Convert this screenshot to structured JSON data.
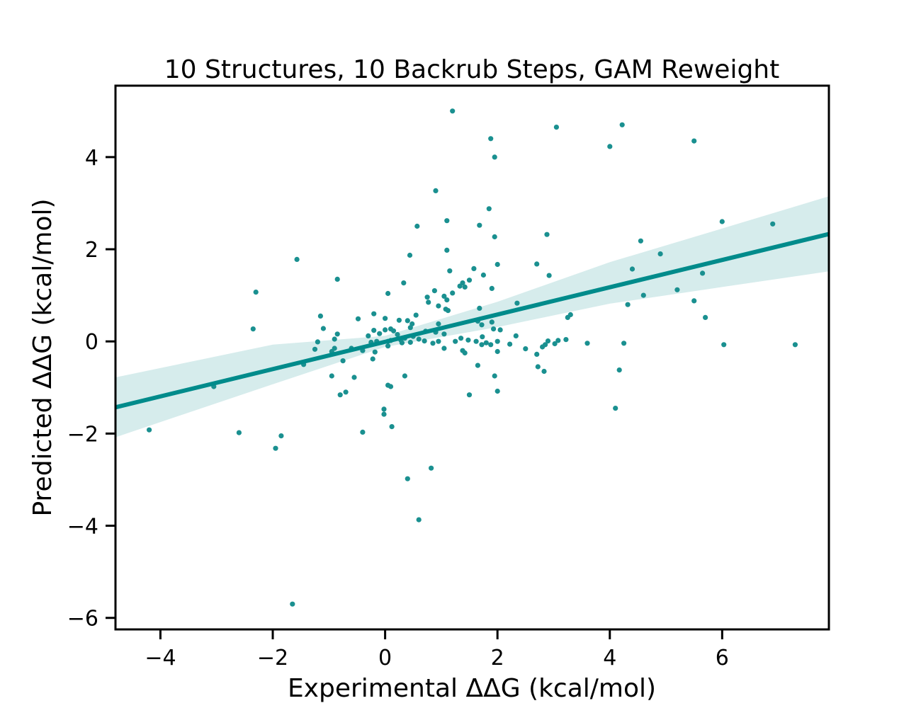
{
  "chart_data": {
    "type": "scatter",
    "title": "10 Structures, 10 Backrub Steps, GAM Reweight",
    "xlabel": "Experimental ΔΔG (kcal/mol)",
    "ylabel": "Predicted ΔΔG (kcal/mol)",
    "xlim": [
      -4.8,
      7.9
    ],
    "ylim": [
      -6.25,
      5.55
    ],
    "xticks": [
      -4,
      -2,
      0,
      2,
      4,
      6
    ],
    "yticks": [
      -6,
      -4,
      -2,
      0,
      2,
      4
    ],
    "xtick_labels": [
      "−4",
      "−2",
      "0",
      "2",
      "4",
      "6"
    ],
    "ytick_labels": [
      "−6",
      "−4",
      "−2",
      "0",
      "2",
      "4"
    ],
    "grid": false,
    "colors": {
      "points": "#1a9090",
      "line": "#008b8b",
      "band": "#d6ecec"
    },
    "regression": {
      "line": [
        [
          -4.8,
          -1.43
        ],
        [
          7.9,
          2.33
        ]
      ],
      "band_upper": [
        [
          -4.8,
          -0.78
        ],
        [
          -2,
          -0.07
        ],
        [
          0,
          0.12
        ],
        [
          2,
          0.86
        ],
        [
          4,
          1.72
        ],
        [
          6,
          2.45
        ],
        [
          7.9,
          3.15
        ]
      ],
      "band_lower": [
        [
          -4.8,
          -2.08
        ],
        [
          -2,
          -0.93
        ],
        [
          0,
          -0.12
        ],
        [
          2,
          0.31
        ],
        [
          4,
          0.82
        ],
        [
          6,
          1.18
        ],
        [
          7.9,
          1.52
        ]
      ]
    },
    "series": [
      {
        "points": [
          [
            1.2,
            5.0
          ],
          [
            3.05,
            4.65
          ],
          [
            4.22,
            4.7
          ],
          [
            1.88,
            4.4
          ],
          [
            4.0,
            4.23
          ],
          [
            5.5,
            4.35
          ],
          [
            1.95,
            4.0
          ],
          [
            0.9,
            3.27
          ],
          [
            1.85,
            2.88
          ],
          [
            1.1,
            2.62
          ],
          [
            0.57,
            2.5
          ],
          [
            1.68,
            2.52
          ],
          [
            2.88,
            2.32
          ],
          [
            1.95,
            2.27
          ],
          [
            6.0,
            2.6
          ],
          [
            6.9,
            2.55
          ],
          [
            4.55,
            2.18
          ],
          [
            1.1,
            1.98
          ],
          [
            0.44,
            1.87
          ],
          [
            4.9,
            1.9
          ],
          [
            -1.57,
            1.78
          ],
          [
            2.0,
            1.67
          ],
          [
            2.7,
            1.68
          ],
          [
            1.58,
            1.58
          ],
          [
            4.4,
            1.57
          ],
          [
            1.15,
            1.53
          ],
          [
            5.65,
            1.48
          ],
          [
            1.75,
            1.44
          ],
          [
            2.92,
            1.43
          ],
          [
            -0.85,
            1.35
          ],
          [
            1.5,
            1.33
          ],
          [
            1.38,
            1.27
          ],
          [
            0.33,
            1.27
          ],
          [
            1.33,
            1.2
          ],
          [
            1.42,
            1.18
          ],
          [
            1.9,
            1.15
          ],
          [
            5.2,
            1.12
          ],
          [
            0.88,
            1.1
          ],
          [
            1.2,
            1.05
          ],
          [
            -2.3,
            1.07
          ],
          [
            0.05,
            1.04
          ],
          [
            4.6,
            1.0
          ],
          [
            1.05,
            0.98
          ],
          [
            0.75,
            0.96
          ],
          [
            1.1,
            0.9
          ],
          [
            5.5,
            0.88
          ],
          [
            0.77,
            0.85
          ],
          [
            2.35,
            0.83
          ],
          [
            4.32,
            0.8
          ],
          [
            0.95,
            0.77
          ],
          [
            1.08,
            0.7
          ],
          [
            1.68,
            0.72
          ],
          [
            1.12,
            0.67
          ],
          [
            3.3,
            0.58
          ],
          [
            0.55,
            0.57
          ],
          [
            -1.15,
            0.55
          ],
          [
            5.7,
            0.52
          ],
          [
            3.25,
            0.52
          ],
          [
            -0.2,
            0.6
          ],
          [
            0.0,
            0.5
          ],
          [
            -0.48,
            0.49
          ],
          [
            0.25,
            0.46
          ],
          [
            0.4,
            0.45
          ],
          [
            1.65,
            0.44
          ],
          [
            1.9,
            0.42
          ],
          [
            0.48,
            0.38
          ],
          [
            0.95,
            0.38
          ],
          [
            1.72,
            0.36
          ],
          [
            0.45,
            0.3
          ],
          [
            -1.1,
            0.28
          ],
          [
            -2.35,
            0.27
          ],
          [
            1.93,
            0.27
          ],
          [
            0.1,
            0.27
          ],
          [
            -0.2,
            0.24
          ],
          [
            0.0,
            0.25
          ],
          [
            0.15,
            0.23
          ],
          [
            2.05,
            0.25
          ],
          [
            0.9,
            0.2
          ],
          [
            0.72,
            0.22
          ],
          [
            1.05,
            0.16
          ],
          [
            -0.85,
            0.16
          ],
          [
            -0.1,
            0.17
          ],
          [
            0.22,
            0.15
          ],
          [
            -0.3,
            0.12
          ],
          [
            0.5,
            0.11
          ],
          [
            2.33,
            0.12
          ],
          [
            1.73,
            0.1
          ],
          [
            1.35,
            0.07
          ],
          [
            0.35,
            0.07
          ],
          [
            -0.9,
            0.05
          ],
          [
            0.6,
            0.05
          ],
          [
            0.28,
            0.03
          ],
          [
            3.08,
            0.02
          ],
          [
            3.22,
            0.04
          ],
          [
            2.9,
            0.01
          ],
          [
            1.48,
            0.03
          ],
          [
            0.1,
            0.02
          ],
          [
            0.7,
            0.01
          ],
          [
            -0.15,
            0.0
          ],
          [
            0.05,
            0.0
          ],
          [
            0.95,
            0.0
          ],
          [
            1.25,
            0.0
          ],
          [
            1.62,
            0.0
          ],
          [
            2.0,
            0.0
          ],
          [
            0.45,
            -0.02
          ],
          [
            -1.2,
            -0.01
          ],
          [
            1.8,
            -0.03
          ],
          [
            0.3,
            -0.03
          ],
          [
            -0.25,
            -0.02
          ],
          [
            0.85,
            -0.04
          ],
          [
            3.6,
            -0.04
          ],
          [
            4.25,
            -0.04
          ],
          [
            3.02,
            -0.05
          ],
          [
            1.72,
            -0.07
          ],
          [
            1.88,
            -0.07
          ],
          [
            2.22,
            -0.06
          ],
          [
            2.85,
            -0.07
          ],
          [
            6.03,
            -0.07
          ],
          [
            7.3,
            -0.07
          ],
          [
            2.8,
            -0.12
          ],
          [
            0.05,
            -0.1
          ],
          [
            -0.6,
            -0.15
          ],
          [
            1.05,
            -0.15
          ],
          [
            -0.9,
            -0.15
          ],
          [
            -1.25,
            -0.17
          ],
          [
            1.38,
            -0.2
          ],
          [
            -0.4,
            -0.2
          ],
          [
            2.0,
            -0.22
          ],
          [
            -0.95,
            -0.22
          ],
          [
            -0.18,
            -0.23
          ],
          [
            1.42,
            -0.25
          ],
          [
            2.5,
            -0.16
          ],
          [
            2.7,
            -0.28
          ],
          [
            -0.22,
            -0.38
          ],
          [
            -0.75,
            -0.42
          ],
          [
            -1.45,
            -0.5
          ],
          [
            1.65,
            -0.52
          ],
          [
            2.72,
            -0.55
          ],
          [
            4.17,
            -0.62
          ],
          [
            2.83,
            -0.65
          ],
          [
            -0.55,
            -0.78
          ],
          [
            -0.95,
            -0.75
          ],
          [
            0.35,
            -0.75
          ],
          [
            1.95,
            -0.75
          ],
          [
            0.05,
            -0.95
          ],
          [
            0.1,
            -0.98
          ],
          [
            2.0,
            -1.08
          ],
          [
            -0.7,
            -1.1
          ],
          [
            -0.8,
            -1.16
          ],
          [
            1.5,
            -1.16
          ],
          [
            4.1,
            -1.45
          ],
          [
            -0.02,
            -1.47
          ],
          [
            -0.02,
            -1.58
          ],
          [
            0.12,
            -1.85
          ],
          [
            -4.2,
            -1.92
          ],
          [
            -2.6,
            -1.98
          ],
          [
            -0.4,
            -1.97
          ],
          [
            -1.85,
            -2.05
          ],
          [
            -1.95,
            -2.32
          ],
          [
            0.82,
            -2.75
          ],
          [
            0.4,
            -2.98
          ],
          [
            -3.05,
            -0.98
          ],
          [
            0.6,
            -3.87
          ],
          [
            -1.65,
            -5.7
          ]
        ]
      }
    ]
  }
}
